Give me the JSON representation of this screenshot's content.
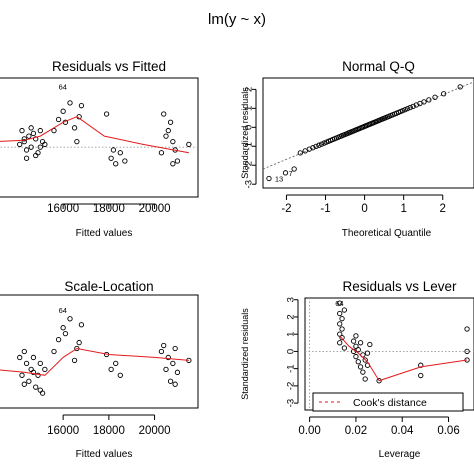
{
  "figure_title": "lm(y ~ x)",
  "chart_data": [
    {
      "id": "rvf",
      "type": "scatter",
      "title": "Residuals vs Fitted",
      "xlabel": "Fitted values",
      "ylabel": "",
      "xlim": [
        12800,
        21900
      ],
      "ylim": [
        -1.8,
        2.5
      ],
      "xticks": [
        16000,
        18000,
        20000
      ],
      "yticks": [],
      "reference_y": 0,
      "label_points": [
        {
          "label": "64",
          "x": 16150,
          "y": 2.2
        }
      ],
      "points": [
        {
          "x": 14100,
          "y": 0.1
        },
        {
          "x": 14200,
          "y": 0.6
        },
        {
          "x": 14300,
          "y": 0.2
        },
        {
          "x": 14400,
          "y": -0.1
        },
        {
          "x": 14500,
          "y": 0.4
        },
        {
          "x": 14600,
          "y": 0.0
        },
        {
          "x": 14700,
          "y": 0.5
        },
        {
          "x": 14800,
          "y": 0.3
        },
        {
          "x": 14900,
          "y": -0.2
        },
        {
          "x": 15000,
          "y": 0.6
        },
        {
          "x": 15100,
          "y": 0.2
        },
        {
          "x": 14300,
          "y": 0.3
        },
        {
          "x": 14600,
          "y": 0.7
        },
        {
          "x": 14800,
          "y": -0.3
        },
        {
          "x": 15000,
          "y": 0.0
        },
        {
          "x": 15200,
          "y": 0.1
        },
        {
          "x": 14400,
          "y": -0.4
        },
        {
          "x": 15600,
          "y": 0.6
        },
        {
          "x": 15800,
          "y": 1.0
        },
        {
          "x": 16000,
          "y": 1.3
        },
        {
          "x": 16100,
          "y": 0.9
        },
        {
          "x": 16300,
          "y": 1.6
        },
        {
          "x": 16500,
          "y": 0.7
        },
        {
          "x": 16600,
          "y": 0.2
        },
        {
          "x": 16700,
          "y": 1.1
        },
        {
          "x": 16800,
          "y": 1.5
        },
        {
          "x": 17900,
          "y": 1.2
        },
        {
          "x": 18100,
          "y": -0.4
        },
        {
          "x": 18200,
          "y": -0.1
        },
        {
          "x": 18300,
          "y": -0.6
        },
        {
          "x": 18500,
          "y": -0.2
        },
        {
          "x": 18700,
          "y": -0.5
        },
        {
          "x": 20400,
          "y": 1.2
        },
        {
          "x": 20600,
          "y": 0.6
        },
        {
          "x": 20700,
          "y": 0.9
        },
        {
          "x": 20800,
          "y": 0.2
        },
        {
          "x": 20900,
          "y": -0.1
        },
        {
          "x": 21000,
          "y": -0.5
        },
        {
          "x": 20300,
          "y": -0.2
        },
        {
          "x": 21500,
          "y": 0.1
        },
        {
          "x": 20500,
          "y": 0.4
        },
        {
          "x": 20800,
          "y": -0.6
        }
      ],
      "smooth": [
        {
          "x": 12900,
          "y": 0.2
        },
        {
          "x": 14300,
          "y": 0.25
        },
        {
          "x": 15000,
          "y": 0.4
        },
        {
          "x": 16000,
          "y": 0.9
        },
        {
          "x": 16600,
          "y": 1.1
        },
        {
          "x": 17800,
          "y": 0.4
        },
        {
          "x": 19500,
          "y": 0.1
        },
        {
          "x": 21500,
          "y": -0.2
        }
      ]
    },
    {
      "id": "qq",
      "type": "scatter",
      "title": "Normal Q-Q",
      "xlabel": "Theoretical Quantile",
      "ylabel": "Standardized residuals",
      "xlim": [
        -2.6,
        2.8
      ],
      "ylim": [
        -3.2,
        2.6
      ],
      "xticks": [
        -2,
        -1,
        0,
        1,
        2
      ],
      "yticks": [
        -3,
        -2,
        -1,
        0,
        1,
        2
      ],
      "label_points": [
        {
          "label": "13",
          "x": -2.45,
          "y": -2.7
        },
        {
          "x": -2.1,
          "y": -2.4,
          "label": "7"
        }
      ],
      "qq_line": [
        [
          -2.6,
          -2.2
        ],
        [
          2.8,
          2.4
        ]
      ]
    },
    {
      "id": "sl",
      "type": "scatter",
      "title": "Scale-Location",
      "xlabel": "Fitted values",
      "ylabel": "",
      "xlim": [
        12800,
        21900
      ],
      "ylim": [
        -0.05,
        1.85
      ],
      "xticks": [
        16000,
        18000,
        20000
      ],
      "yticks": [],
      "label_points": [
        {
          "label": "64",
          "x": 16150,
          "y": 1.6
        }
      ],
      "points": [
        {
          "x": 14100,
          "y": 0.8
        },
        {
          "x": 14200,
          "y": 0.5
        },
        {
          "x": 14300,
          "y": 0.9
        },
        {
          "x": 14400,
          "y": 0.7
        },
        {
          "x": 14500,
          "y": 0.4
        },
        {
          "x": 14600,
          "y": 0.6
        },
        {
          "x": 14700,
          "y": 0.8
        },
        {
          "x": 14800,
          "y": 0.3
        },
        {
          "x": 14900,
          "y": 0.5
        },
        {
          "x": 15000,
          "y": 0.7
        },
        {
          "x": 15100,
          "y": 0.2
        },
        {
          "x": 15200,
          "y": 0.6
        },
        {
          "x": 14300,
          "y": 0.35
        },
        {
          "x": 14700,
          "y": 0.55
        },
        {
          "x": 15000,
          "y": 0.25
        },
        {
          "x": 15600,
          "y": 0.9
        },
        {
          "x": 15800,
          "y": 1.1
        },
        {
          "x": 16000,
          "y": 1.3
        },
        {
          "x": 16100,
          "y": 1.2
        },
        {
          "x": 16300,
          "y": 1.45
        },
        {
          "x": 16500,
          "y": 0.75
        },
        {
          "x": 16600,
          "y": 0.95
        },
        {
          "x": 16700,
          "y": 1.05
        },
        {
          "x": 16800,
          "y": 1.35
        },
        {
          "x": 17900,
          "y": 0.85
        },
        {
          "x": 18100,
          "y": 0.6
        },
        {
          "x": 18300,
          "y": 0.7
        },
        {
          "x": 18500,
          "y": 0.5
        },
        {
          "x": 20400,
          "y": 1.0
        },
        {
          "x": 20500,
          "y": 0.6
        },
        {
          "x": 20600,
          "y": 0.8
        },
        {
          "x": 20700,
          "y": 0.4
        },
        {
          "x": 20800,
          "y": 0.7
        },
        {
          "x": 20900,
          "y": 0.35
        },
        {
          "x": 21000,
          "y": 0.55
        },
        {
          "x": 21500,
          "y": 0.75
        },
        {
          "x": 20300,
          "y": 0.9
        },
        {
          "x": 20900,
          "y": 0.95
        }
      ],
      "smooth": [
        {
          "x": 12900,
          "y": 0.6
        },
        {
          "x": 14300,
          "y": 0.55
        },
        {
          "x": 15200,
          "y": 0.5
        },
        {
          "x": 16000,
          "y": 0.8
        },
        {
          "x": 16600,
          "y": 0.95
        },
        {
          "x": 18000,
          "y": 0.85
        },
        {
          "x": 20000,
          "y": 0.8
        },
        {
          "x": 21500,
          "y": 0.75
        }
      ]
    },
    {
      "id": "rvl",
      "type": "scatter",
      "title": "Residuals vs Lever",
      "xlabel": "Leverage",
      "ylabel": "Standardized residuals",
      "xlim": [
        -0.002,
        0.071
      ],
      "ylim": [
        -3.4,
        3.1
      ],
      "xticks": [
        0.0,
        0.02,
        0.04,
        0.06
      ],
      "xtick_labels": [
        "0.00",
        "0.02",
        "0.04",
        "0.06"
      ],
      "yticks": [
        -3,
        -2,
        -1,
        0,
        1,
        2,
        3
      ],
      "reference_y": 0,
      "label_points": [
        {
          "label": "64",
          "x": 0.0145,
          "y": 2.8
        }
      ],
      "points": [
        {
          "x": 0.013,
          "y": 2.8
        },
        {
          "x": 0.013,
          "y": 2.2
        },
        {
          "x": 0.013,
          "y": 1.6
        },
        {
          "x": 0.013,
          "y": 1.0
        },
        {
          "x": 0.013,
          "y": 0.5
        },
        {
          "x": 0.014,
          "y": 1.9
        },
        {
          "x": 0.014,
          "y": 1.3
        },
        {
          "x": 0.014,
          "y": 0.8
        },
        {
          "x": 0.015,
          "y": 2.4
        },
        {
          "x": 0.015,
          "y": 0.2
        },
        {
          "x": 0.019,
          "y": 0.6
        },
        {
          "x": 0.019,
          "y": 0.0
        },
        {
          "x": 0.02,
          "y": 0.9
        },
        {
          "x": 0.02,
          "y": 0.3
        },
        {
          "x": 0.02,
          "y": -0.3
        },
        {
          "x": 0.021,
          "y": -0.6
        },
        {
          "x": 0.021,
          "y": 0.1
        },
        {
          "x": 0.022,
          "y": -0.9
        },
        {
          "x": 0.022,
          "y": 0.5
        },
        {
          "x": 0.023,
          "y": -0.2
        },
        {
          "x": 0.023,
          "y": -1.2
        },
        {
          "x": 0.024,
          "y": -0.5
        },
        {
          "x": 0.024,
          "y": -1.6
        },
        {
          "x": 0.025,
          "y": -0.1
        },
        {
          "x": 0.025,
          "y": -0.8
        },
        {
          "x": 0.026,
          "y": 0.4
        },
        {
          "x": 0.03,
          "y": -1.7
        },
        {
          "x": 0.048,
          "y": -1.4
        },
        {
          "x": 0.048,
          "y": -0.8
        },
        {
          "x": 0.068,
          "y": 1.3
        },
        {
          "x": 0.068,
          "y": 0.0
        },
        {
          "x": 0.068,
          "y": -0.5
        }
      ],
      "smooth": [
        {
          "x": 0.013,
          "y": 0.9
        },
        {
          "x": 0.017,
          "y": 0.3
        },
        {
          "x": 0.021,
          "y": -0.1
        },
        {
          "x": 0.025,
          "y": -0.6
        },
        {
          "x": 0.03,
          "y": -1.7
        },
        {
          "x": 0.048,
          "y": -0.9
        },
        {
          "x": 0.068,
          "y": -0.5
        }
      ],
      "legend": {
        "label": "Cook's distance",
        "placement": "bottom"
      }
    }
  ]
}
